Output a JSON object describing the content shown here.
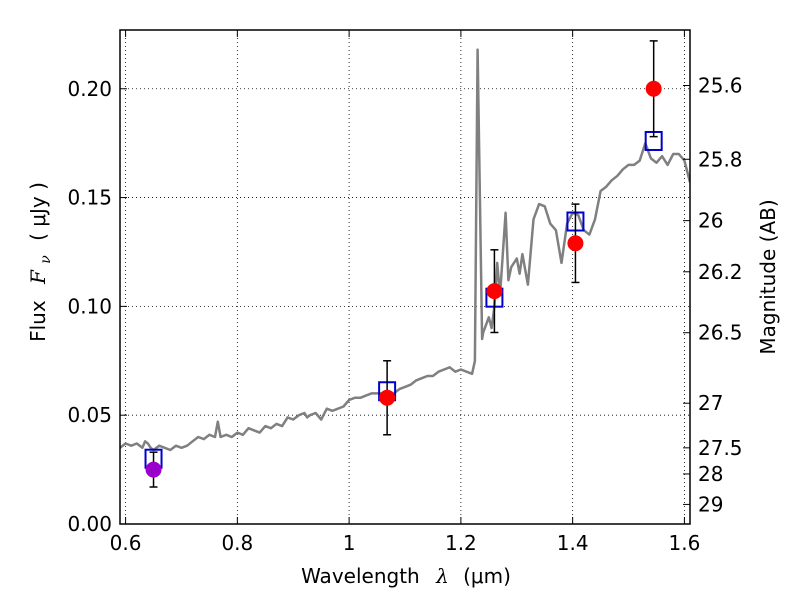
{
  "chart_data": {
    "type": "line",
    "xlabel": "Wavelength",
    "xlabel_symbol": "λ",
    "xlabel_unit": "(μm)",
    "ylabel_left": "Flux",
    "ylabel_left_symbol": "F",
    "ylabel_left_subscript": "ν",
    "ylabel_left_unit": "( μJy )",
    "ylabel_right": "Magnitude (AB)",
    "xlim": [
      0.59,
      1.61
    ],
    "ylim": [
      0.0,
      0.227
    ],
    "grid": true,
    "x_ticks": [
      {
        "value": 0.6,
        "label": "0.6"
      },
      {
        "value": 0.8,
        "label": "0.8"
      },
      {
        "value": 1.0,
        "label": "1"
      },
      {
        "value": 1.2,
        "label": "1.2"
      },
      {
        "value": 1.4,
        "label": "1.4"
      },
      {
        "value": 1.6,
        "label": "1.6"
      }
    ],
    "y_ticks": [
      {
        "value": 0.0,
        "label": "0.00"
      },
      {
        "value": 0.05,
        "label": "0.05"
      },
      {
        "value": 0.1,
        "label": "0.10"
      },
      {
        "value": 0.15,
        "label": "0.15"
      },
      {
        "value": 0.2,
        "label": "0.20"
      }
    ],
    "right_ticks": [
      {
        "value": 25.6,
        "flux": 0.2015,
        "label": "25.6"
      },
      {
        "value": 25.8,
        "flux": 0.1676,
        "label": "25.8"
      },
      {
        "value": 26.0,
        "flux": 0.1394,
        "label": "26"
      },
      {
        "value": 26.2,
        "flux": 0.1159,
        "label": "26.2"
      },
      {
        "value": 26.5,
        "flux": 0.0879,
        "label": "26.5"
      },
      {
        "value": 27.0,
        "flux": 0.0555,
        "label": "27"
      },
      {
        "value": 27.5,
        "flux": 0.035,
        "label": "27.5"
      },
      {
        "value": 28.0,
        "flux": 0.023,
        "label": "28"
      },
      {
        "value": 29.0,
        "flux": 0.009,
        "label": "29"
      }
    ],
    "series": [
      {
        "type": "line",
        "color": "#808080",
        "x": [
          0.59,
          0.6,
          0.61,
          0.62,
          0.63,
          0.635,
          0.64,
          0.645,
          0.65,
          0.66,
          0.67,
          0.68,
          0.69,
          0.7,
          0.71,
          0.72,
          0.73,
          0.74,
          0.75,
          0.76,
          0.765,
          0.77,
          0.78,
          0.79,
          0.8,
          0.81,
          0.82,
          0.83,
          0.84,
          0.85,
          0.86,
          0.87,
          0.88,
          0.89,
          0.9,
          0.91,
          0.92,
          0.925,
          0.93,
          0.94,
          0.95,
          0.96,
          0.97,
          0.98,
          0.99,
          1.0,
          1.01,
          1.02,
          1.03,
          1.04,
          1.05,
          1.06,
          1.07,
          1.08,
          1.09,
          1.1,
          1.11,
          1.12,
          1.13,
          1.14,
          1.15,
          1.16,
          1.17,
          1.18,
          1.19,
          1.2,
          1.21,
          1.22,
          1.225,
          1.23,
          1.234,
          1.238,
          1.24,
          1.25,
          1.255,
          1.26,
          1.265,
          1.27,
          1.28,
          1.285,
          1.29,
          1.3,
          1.305,
          1.31,
          1.32,
          1.33,
          1.34,
          1.35,
          1.36,
          1.37,
          1.38,
          1.39,
          1.4,
          1.41,
          1.42,
          1.43,
          1.44,
          1.45,
          1.46,
          1.47,
          1.48,
          1.49,
          1.5,
          1.51,
          1.52,
          1.53,
          1.54,
          1.55,
          1.56,
          1.57,
          1.58,
          1.59,
          1.6,
          1.61
        ],
        "y": [
          0.035,
          0.037,
          0.036,
          0.037,
          0.035,
          0.038,
          0.037,
          0.035,
          0.034,
          0.036,
          0.035,
          0.034,
          0.036,
          0.035,
          0.036,
          0.038,
          0.04,
          0.039,
          0.041,
          0.04,
          0.047,
          0.04,
          0.041,
          0.04,
          0.042,
          0.041,
          0.044,
          0.043,
          0.042,
          0.045,
          0.044,
          0.046,
          0.045,
          0.049,
          0.048,
          0.05,
          0.051,
          0.049,
          0.05,
          0.051,
          0.048,
          0.053,
          0.052,
          0.053,
          0.054,
          0.057,
          0.058,
          0.058,
          0.059,
          0.06,
          0.06,
          0.06,
          0.061,
          0.06,
          0.062,
          0.063,
          0.064,
          0.066,
          0.067,
          0.068,
          0.068,
          0.07,
          0.071,
          0.072,
          0.07,
          0.071,
          0.07,
          0.069,
          0.075,
          0.218,
          0.15,
          0.085,
          0.088,
          0.095,
          0.09,
          0.1,
          0.12,
          0.105,
          0.143,
          0.112,
          0.118,
          0.122,
          0.115,
          0.124,
          0.11,
          0.14,
          0.147,
          0.146,
          0.138,
          0.135,
          0.12,
          0.138,
          0.143,
          0.142,
          0.135,
          0.133,
          0.14,
          0.153,
          0.155,
          0.158,
          0.16,
          0.163,
          0.165,
          0.165,
          0.167,
          0.175,
          0.168,
          0.166,
          0.169,
          0.165,
          0.17,
          0.17,
          0.167,
          0.157
        ]
      },
      {
        "type": "scatter",
        "color": "#ff0000",
        "points": [
          {
            "x": 1.068,
            "y": 0.058,
            "err": 0.017
          },
          {
            "x": 1.26,
            "y": 0.107,
            "err": 0.019
          },
          {
            "x": 1.405,
            "y": 0.129,
            "err": 0.018
          },
          {
            "x": 1.545,
            "y": 0.2,
            "err": 0.022
          }
        ]
      },
      {
        "type": "scatter",
        "color": "#9900cc",
        "points": [
          {
            "x": 0.65,
            "y": 0.025,
            "err": 0.008
          }
        ]
      },
      {
        "type": "scatter",
        "marker": "square",
        "color": "#0000cc",
        "points": [
          {
            "x": 0.65,
            "y": 0.03
          },
          {
            "x": 1.068,
            "y": 0.061
          },
          {
            "x": 1.26,
            "y": 0.104
          },
          {
            "x": 1.405,
            "y": 0.139
          },
          {
            "x": 1.545,
            "y": 0.176
          }
        ]
      }
    ]
  }
}
